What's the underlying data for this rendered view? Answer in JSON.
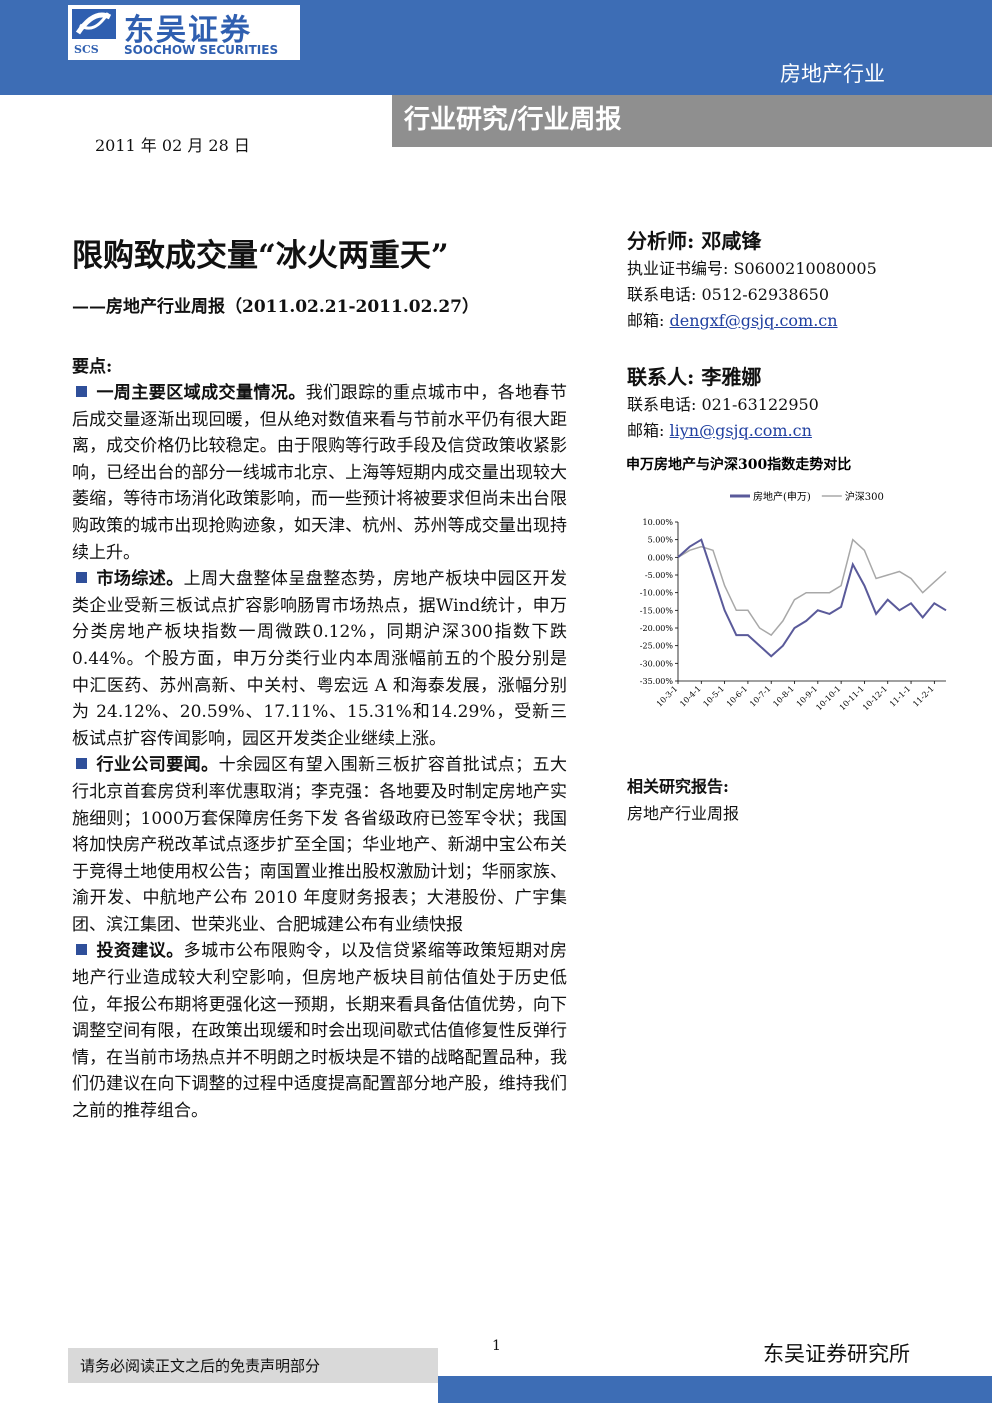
{
  "header": {
    "logo_cn": "东吴证券",
    "logo_en": "SOOCHOW SECURITIES",
    "logo_mark": "SCS",
    "industry": "房地产行业",
    "report_type": "行业研究/行业周报",
    "date": "2011 年 02 月 28 日"
  },
  "title": "限购致成交量“冰火两重天”",
  "subtitle": "——房地产行业周报（2011.02.21-2011.02.27）",
  "key_points": {
    "heading": "要点:",
    "items": [
      {
        "lead": "一周主要区域成交量情况。",
        "text": "我们跟踪的重点城市中，各地春节后成交量逐渐出现回暖，但从绝对数值来看与节前水平仍有很大距离，成交价格仍比较稳定。由于限购等行政手段及信贷政策收紧影响，已经出台的部分一线城市北京、上海等短期内成交量出现较大萎缩，等待市场消化政策影响，而一些预计将被要求但尚未出台限购政策的城市出现抢购迹象，如天津、杭州、苏州等成交量出现持续上升。"
      },
      {
        "lead": "市场综述。",
        "text": "上周大盘整体呈盘整态势，房地产板块中园区开发类企业受新三板试点扩容影响肠胃市场热点，据Wind统计，申万分类房地产板块指数一周微跌0.12%，同期沪深300指数下跌0.44%。个股方面，申万分类行业内本周涨幅前五的个股分别是中汇医药、苏州高新、中关村、粤宏远 A 和海泰发展，涨幅分别为 24.12%、20.59%、17.11%、15.31%和14.29%，受新三板试点扩容传闻影响，园区开发类企业继续上涨。"
      },
      {
        "lead": "行业公司要闻。",
        "text": "十余园区有望入围新三板扩容首批试点；五大行北京首套房贷利率优惠取消；李克强：各地要及时制定房地产实施细则；1000万套保障房任务下发 各省级政府已签军令状；我国将加快房产税改革试点逐步扩至全国；华业地产、新湖中宝公布关于竞得土地使用权公告；南国置业推出股权激励计划；华丽家族、渝开发、中航地产公布 2010 年度财务报表；大港股份、广宇集团、滨江集团、世荣兆业、合肥城建公布有业绩快报"
      },
      {
        "lead": "投资建议。",
        "text": "多城市公布限购令，以及信贷紧缩等政策短期对房地产行业造成较大利空影响，但房地产板块目前估值处于历史低位，年报公布期将更强化这一预期，长期来看具备估值优势，向下调整空间有限，在政策出现缓和时会出现间歇式估值修复性反弹行情，在当前市场热点并不明朗之时板块是不错的战略配置品种，我们仍建议在向下调整的过程中适度提高配置部分地产股，维持我们之前的推荐组合。"
      }
    ]
  },
  "analyst": {
    "heading": "分析师: 邓咸锋",
    "cert": "执业证书编号: S0600210080005",
    "phone": "联系电话: 0512-62938650",
    "email_label": "邮箱:",
    "email": "dengxf@gsjq.com.cn"
  },
  "contact": {
    "heading": "联系人: 李雅娜",
    "phone": "联系电话: 021-63122950",
    "email_label": "邮箱:",
    "email": "liyn@gsjq.com.cn"
  },
  "chart_data": {
    "type": "line",
    "title": "申万房地产与沪深300指数走势对比",
    "categories": [
      "10-3-1",
      null,
      "10-4-1",
      null,
      "10-5-1",
      null,
      "10-6-1",
      null,
      "10-7-1",
      null,
      "10-8-1",
      null,
      "10-9-1",
      null,
      "10-10-1",
      null,
      "10-11-1",
      null,
      "10-12-1",
      null,
      "11-1-1",
      null,
      "11-2-1",
      null
    ],
    "series": [
      {
        "name": "房地产(申万)",
        "color": "#5a5a9a",
        "values": [
          0,
          3,
          5,
          -5,
          -15,
          -22,
          -22,
          -25,
          -28,
          -25,
          -20,
          -18,
          -15,
          -16,
          -14,
          -2,
          -8,
          -16,
          -12,
          -15,
          -13,
          -17,
          -13,
          -15
        ]
      },
      {
        "name": "沪深300",
        "color": "#a8a8a8",
        "values": [
          0,
          2,
          3,
          2,
          -8,
          -15,
          -15,
          -20,
          -22,
          -18,
          -12,
          -10,
          -10,
          -10,
          -8,
          5,
          2,
          -6,
          -5,
          -4,
          -6,
          -10,
          -7,
          -4
        ]
      }
    ],
    "ylim": [
      -35,
      10
    ],
    "yticks": [
      {
        "value": 10,
        "label": "10.00%"
      },
      {
        "value": 5,
        "label": "5.00%"
      },
      {
        "value": 0,
        "label": "0.00%"
      },
      {
        "value": -5,
        "label": "-5.00%"
      },
      {
        "value": -10,
        "label": "-10.00%"
      },
      {
        "value": -15,
        "label": "-15.00%"
      },
      {
        "value": -20,
        "label": "-20.00%"
      },
      {
        "value": -25,
        "label": "-25.00%"
      },
      {
        "value": -30,
        "label": "-30.00%"
      },
      {
        "value": -35,
        "label": "-35.00%"
      }
    ],
    "legend": "top"
  },
  "related": {
    "heading": "相关研究报告:",
    "items": [
      "房地产行业周报"
    ]
  },
  "footer": {
    "disclaimer": "请务必阅读正文之后的免责声明部分",
    "page": "1",
    "institute": "东吴证券研究所"
  }
}
